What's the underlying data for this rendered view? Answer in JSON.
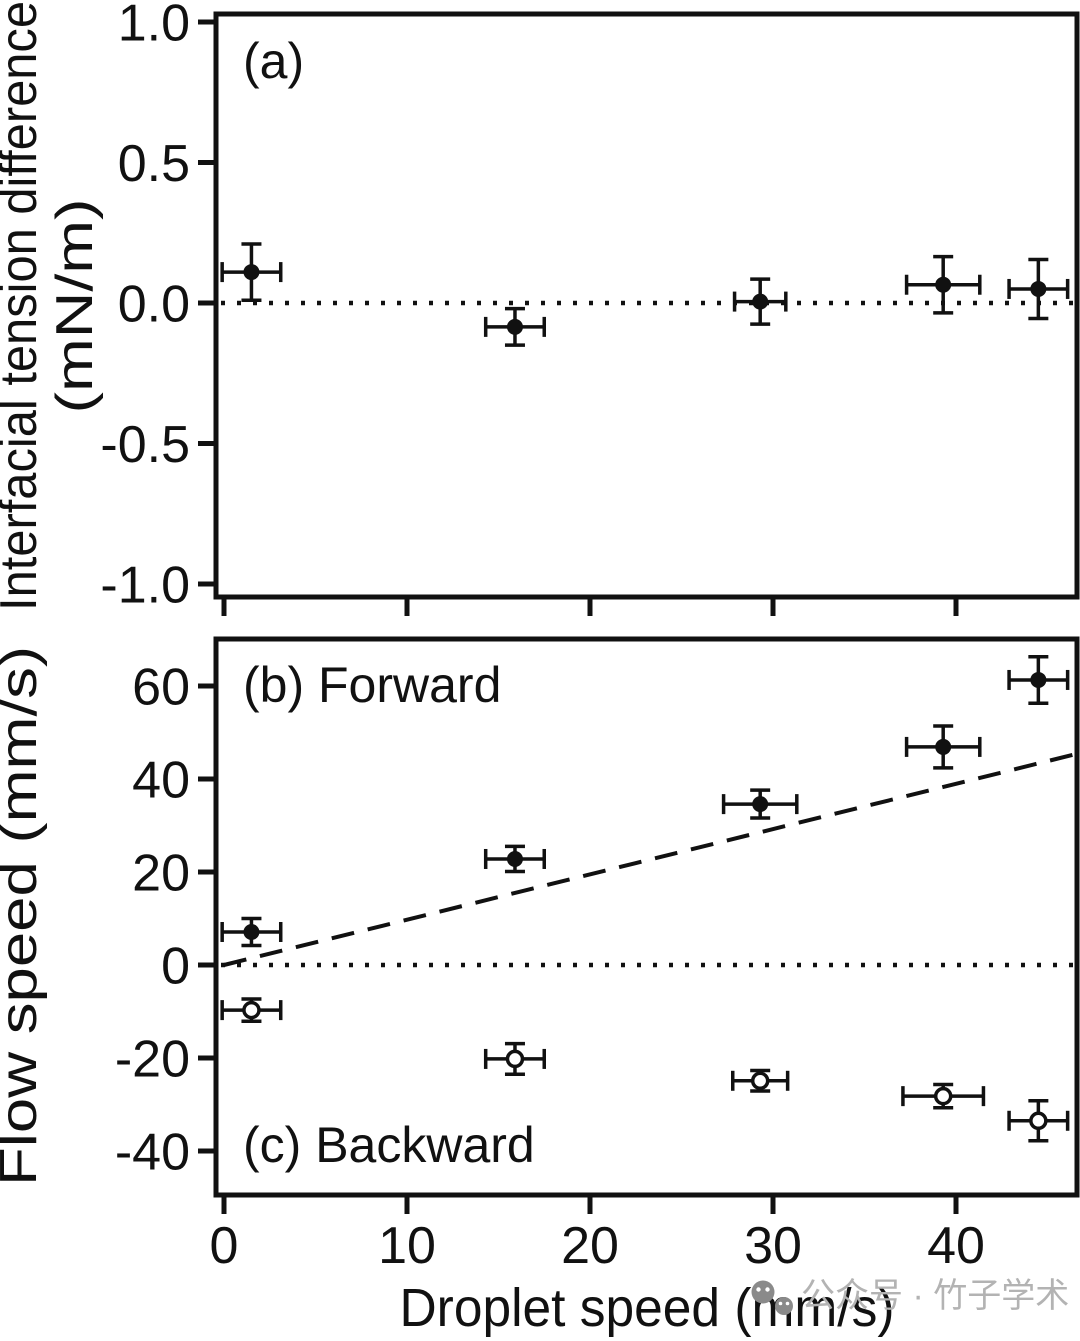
{
  "figure": {
    "panel_a": {
      "label": "(a)"
    },
    "panel_b": {
      "label": "(b) Forward"
    },
    "panel_c": {
      "label": "(c) Backward"
    },
    "axis_titles": {
      "x": "Droplet speed (mm/s)",
      "y_a_line1": "Interfacial tension difference",
      "y_a_line2": "(mN/m)",
      "y_b": "Flow speed (mm/s)"
    }
  },
  "watermark": {
    "icon": "wechat-logo-icon",
    "text": "公众号 · 竹子学术",
    "icon_color": "#8a8a8a",
    "text_color": "#b3b3b3"
  },
  "chart_data": [
    {
      "id": "panel_a",
      "type": "scatter",
      "title": "(a)",
      "xlabel": "Droplet speed (mm/s)",
      "ylabel": "Interfacial tension difference (mN/m)",
      "xlim": [
        -0.5,
        46.6
      ],
      "ylim": [
        -1.05,
        1.03
      ],
      "grid": false,
      "x_ticks": [
        0,
        10,
        20,
        30,
        40
      ],
      "x_tick_labels": null,
      "y_ticks": [
        {
          "value": 1.0,
          "label": "1.0"
        },
        {
          "value": 0.5,
          "label": "0.5"
        },
        {
          "value": 0.0,
          "label": "0.0"
        },
        {
          "value": -0.5,
          "label": "-0.5"
        },
        {
          "value": -1.0,
          "label": "-1.0"
        }
      ],
      "reference_lines": [
        {
          "style": "dotted",
          "y": 0
        }
      ],
      "series": [
        {
          "name": "interfacial-tension-difference",
          "marker": "filled-circle",
          "x": [
            1.5,
            15.9,
            29.3,
            39.3,
            44.5
          ],
          "y": [
            0.11,
            -0.085,
            0.005,
            0.065,
            0.05
          ],
          "xerr": [
            1.6,
            1.6,
            1.4,
            2.0,
            1.6
          ],
          "yerr": [
            0.1,
            0.065,
            0.08,
            0.1,
            0.105
          ]
        }
      ]
    },
    {
      "id": "panel_bc",
      "type": "scatter",
      "title": "(b) Forward / (c) Backward",
      "xlabel": "Droplet speed (mm/s)",
      "ylabel": "Flow speed (mm/s)",
      "xlim": [
        -0.5,
        46.6
      ],
      "ylim": [
        -49.5,
        70
      ],
      "grid": false,
      "x_ticks": [
        0,
        10,
        20,
        30,
        40
      ],
      "x_tick_labels": [
        "0",
        "10",
        "20",
        "30",
        "40"
      ],
      "y_ticks": [
        {
          "value": 60,
          "label": "60"
        },
        {
          "value": 40,
          "label": "40"
        },
        {
          "value": 20,
          "label": "20"
        },
        {
          "value": 0,
          "label": "0"
        },
        {
          "value": -20,
          "label": "-20"
        },
        {
          "value": -40,
          "label": "-40"
        }
      ],
      "reference_lines": [
        {
          "style": "dotted",
          "y": 0
        },
        {
          "style": "dashed",
          "from": [
            0,
            0
          ],
          "to": [
            46.6,
            45.4
          ]
        }
      ],
      "series": [
        {
          "name": "forward-flow-speed",
          "marker": "filled-circle",
          "x": [
            1.5,
            15.9,
            29.3,
            39.3,
            44.5
          ],
          "y": [
            7.1,
            22.8,
            34.6,
            46.9,
            61.3
          ],
          "xerr": [
            1.6,
            1.6,
            2.0,
            2.0,
            1.6
          ],
          "yerr": [
            2.9,
            2.7,
            3.0,
            4.5,
            5.0
          ]
        },
        {
          "name": "backward-flow-speed",
          "marker": "open-circle",
          "x": [
            1.5,
            15.9,
            29.3,
            39.3,
            44.5
          ],
          "y": [
            -9.7,
            -20.2,
            -24.9,
            -28.2,
            -33.5
          ],
          "xerr": [
            1.6,
            1.6,
            1.5,
            2.2,
            1.6
          ],
          "yerr": [
            2.4,
            3.3,
            2.2,
            2.5,
            4.3
          ]
        }
      ]
    }
  ]
}
